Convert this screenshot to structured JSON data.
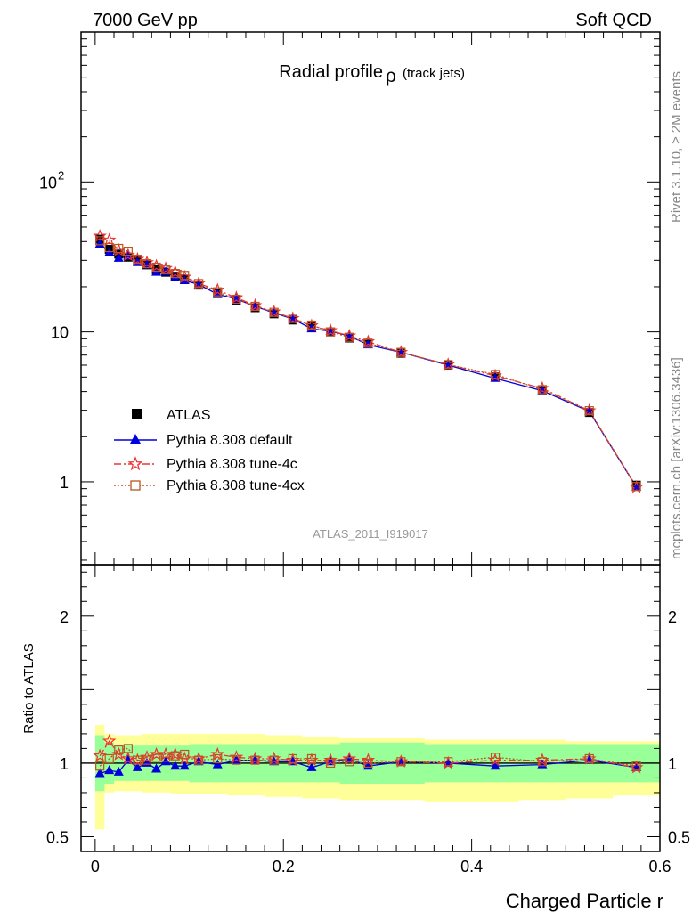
{
  "header": {
    "left": "7000 GeV pp",
    "right": "Soft QCD"
  },
  "side_labels": {
    "upper": "Rivet 3.1.10, ≥ 2M events",
    "lower": "mcplots.cern.ch [arXiv:1306.3436]"
  },
  "chart_data": {
    "type": "line",
    "title": "Radial profile",
    "title_symbol": "ρ",
    "title_suffix": "(track jets)",
    "watermark": "ATLAS_2011_I919017",
    "xlabel": "Charged Particle r",
    "ylabel_ratio": "Ratio to ATLAS",
    "xlim": [
      -0.015,
      0.6
    ],
    "ylim": [
      0.28,
      1000
    ],
    "yscale": "log",
    "ratio_ylim": [
      0.4,
      2.35
    ],
    "x_ticks": [
      "0",
      "0.2",
      "0.4",
      "0.6"
    ],
    "y_ticks": [
      "1",
      "10",
      "10^2"
    ],
    "ratio_ticks": [
      "0.5",
      "1",
      "2"
    ],
    "legend_position": "middle-left",
    "x": [
      0.005,
      0.015,
      0.025,
      0.035,
      0.045,
      0.055,
      0.065,
      0.075,
      0.085,
      0.095,
      0.11,
      0.13,
      0.15,
      0.17,
      0.19,
      0.21,
      0.23,
      0.25,
      0.27,
      0.29,
      0.325,
      0.375,
      0.425,
      0.475,
      0.525,
      0.575
    ],
    "x_edges": [
      0,
      0.01,
      0.02,
      0.03,
      0.04,
      0.05,
      0.06,
      0.07,
      0.08,
      0.09,
      0.1,
      0.12,
      0.14,
      0.16,
      0.18,
      0.2,
      0.22,
      0.24,
      0.26,
      0.28,
      0.3,
      0.35,
      0.4,
      0.45,
      0.5,
      0.55,
      0.6
    ],
    "series": [
      {
        "name": "ATLAS",
        "color": "#000000",
        "marker": "square",
        "values": [
          41.5,
          35.5,
          33.0,
          31.5,
          30.0,
          28.0,
          26.0,
          25.0,
          23.5,
          22.5,
          20.5,
          18.0,
          16.2,
          14.5,
          13.2,
          12.0,
          10.8,
          10.0,
          9.1,
          8.4,
          7.2,
          6.0,
          5.0,
          4.1,
          2.9,
          0.95
        ]
      },
      {
        "name": "Pythia 8.308 default",
        "color": "#0000dd",
        "marker": "triangle",
        "values": [
          38.5,
          33.8,
          31.0,
          32.0,
          29.0,
          28.0,
          25.0,
          25.2,
          23.0,
          22.0,
          20.7,
          17.8,
          16.6,
          14.8,
          13.4,
          12.2,
          10.5,
          10.1,
          9.4,
          8.2,
          7.3,
          6.0,
          4.9,
          4.05,
          2.95,
          0.92
        ]
      },
      {
        "name": "Pythia 8.308 tune-4c",
        "color": "#ee3333",
        "marker": "star",
        "values": [
          43.5,
          41.0,
          35.0,
          32.5,
          30.5,
          29.0,
          27.5,
          26.5,
          25.0,
          23.2,
          21.0,
          19.0,
          16.9,
          15.0,
          13.6,
          12.3,
          11.0,
          10.2,
          9.4,
          8.6,
          7.3,
          6.05,
          5.1,
          4.2,
          2.98,
          0.92
        ]
      },
      {
        "name": "Pythia 8.308 tune-4cx",
        "color": "#bb5522",
        "marker": "open-square",
        "values": [
          40.5,
          36.5,
          36.0,
          34.5,
          30.5,
          28.5,
          27.0,
          26.0,
          24.5,
          23.8,
          21.0,
          18.5,
          16.5,
          14.8,
          13.5,
          12.3,
          11.1,
          10.0,
          9.2,
          8.4,
          7.3,
          6.05,
          5.2,
          4.12,
          2.98,
          0.93
        ]
      }
    ],
    "ratio": {
      "series": [
        {
          "name": "Pythia 8.308 default",
          "values": [
            0.93,
            0.95,
            0.94,
            1.02,
            0.97,
            1.0,
            0.96,
            1.01,
            0.98,
            0.98,
            1.01,
            0.99,
            1.02,
            1.02,
            1.01,
            1.01,
            0.97,
            1.01,
            1.03,
            0.98,
            1.01,
            1.0,
            0.98,
            0.99,
            1.02,
            0.97
          ]
        },
        {
          "name": "Pythia 8.308 tune-4c",
          "values": [
            1.05,
            1.15,
            1.06,
            1.03,
            1.02,
            1.04,
            1.06,
            1.06,
            1.06,
            1.03,
            1.03,
            1.06,
            1.04,
            1.03,
            1.03,
            1.02,
            1.02,
            1.02,
            1.03,
            1.02,
            1.01,
            1.0,
            1.02,
            1.02,
            1.03,
            0.97
          ]
        },
        {
          "name": "Pythia 8.308 tune-4cx",
          "values": [
            0.98,
            1.03,
            1.09,
            1.1,
            1.02,
            1.02,
            1.04,
            1.04,
            1.05,
            1.06,
            1.02,
            1.03,
            1.02,
            1.02,
            1.02,
            1.03,
            1.03,
            1.0,
            1.01,
            1.0,
            1.01,
            1.01,
            1.04,
            1.01,
            1.03,
            0.98
          ]
        }
      ],
      "band_inner": [
        [
          0.81,
          1.19
        ],
        [
          0.86,
          1.14
        ],
        [
          0.88,
          1.12
        ],
        [
          0.88,
          1.12
        ],
        [
          0.88,
          1.12
        ],
        [
          0.88,
          1.12
        ],
        [
          0.88,
          1.12
        ],
        [
          0.88,
          1.12
        ],
        [
          0.88,
          1.12
        ],
        [
          0.88,
          1.12
        ],
        [
          0.87,
          1.13
        ],
        [
          0.87,
          1.13
        ],
        [
          0.87,
          1.13
        ],
        [
          0.87,
          1.13
        ],
        [
          0.87,
          1.13
        ],
        [
          0.87,
          1.13
        ],
        [
          0.87,
          1.13
        ],
        [
          0.87,
          1.13
        ],
        [
          0.86,
          1.14
        ],
        [
          0.86,
          1.14
        ],
        [
          0.86,
          1.14
        ],
        [
          0.87,
          1.13
        ],
        [
          0.87,
          1.13
        ],
        [
          0.87,
          1.13
        ],
        [
          0.87,
          1.13
        ],
        [
          0.87,
          1.13
        ]
      ],
      "band_outer": [
        [
          0.55,
          1.26
        ],
        [
          0.8,
          1.2
        ],
        [
          0.81,
          1.19
        ],
        [
          0.81,
          1.19
        ],
        [
          0.81,
          1.19
        ],
        [
          0.8,
          1.2
        ],
        [
          0.8,
          1.2
        ],
        [
          0.8,
          1.2
        ],
        [
          0.79,
          1.2
        ],
        [
          0.79,
          1.2
        ],
        [
          0.79,
          1.2
        ],
        [
          0.79,
          1.2
        ],
        [
          0.78,
          1.2
        ],
        [
          0.78,
          1.2
        ],
        [
          0.77,
          1.19
        ],
        [
          0.77,
          1.19
        ],
        [
          0.76,
          1.18
        ],
        [
          0.76,
          1.18
        ],
        [
          0.75,
          1.17
        ],
        [
          0.75,
          1.17
        ],
        [
          0.75,
          1.17
        ],
        [
          0.74,
          1.16
        ],
        [
          0.74,
          1.16
        ],
        [
          0.75,
          1.16
        ],
        [
          0.76,
          1.15
        ],
        [
          0.78,
          1.15
        ]
      ],
      "band_colors": {
        "inner": "#99ff99",
        "outer": "#ffff99"
      }
    }
  }
}
